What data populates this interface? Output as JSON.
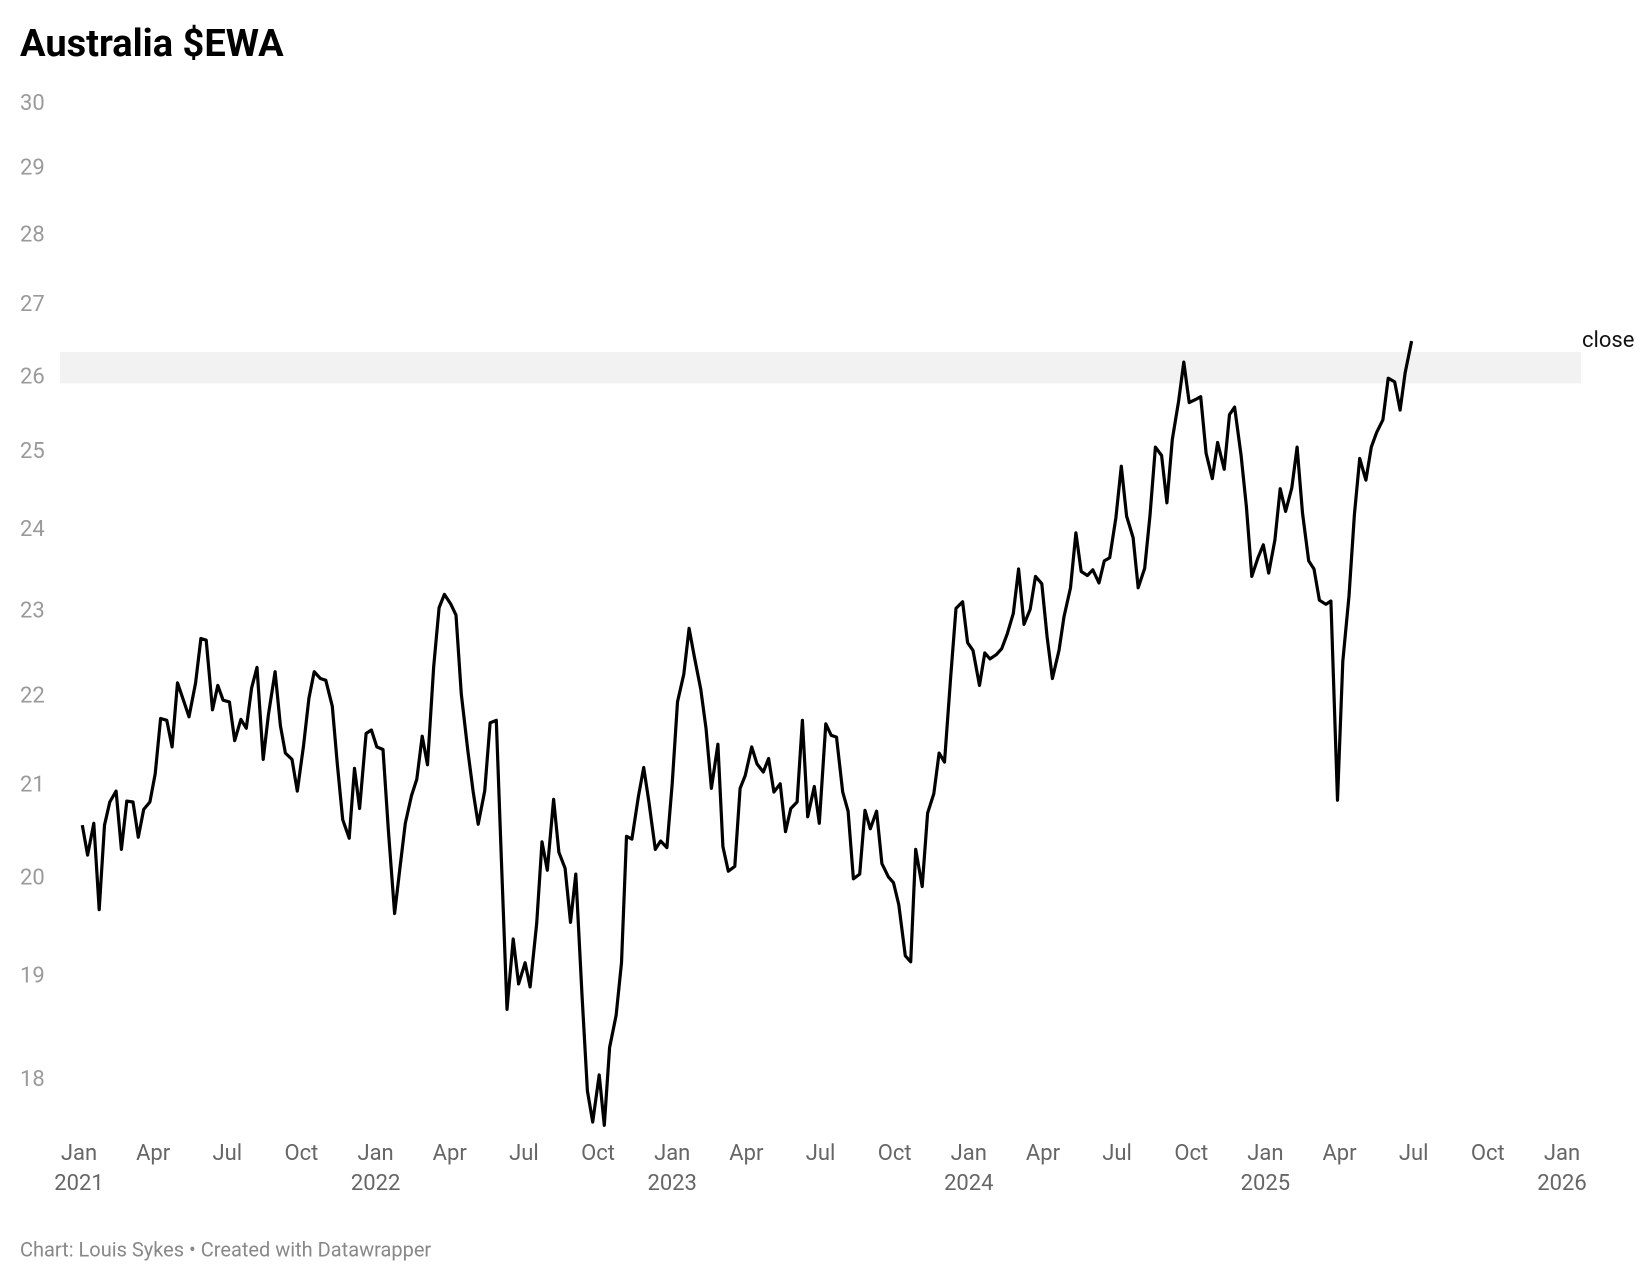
{
  "chart_data": {
    "type": "line",
    "title": "Australia $EWA",
    "source": "Chart: Louis Sykes • Created with Datawrapper",
    "log_scale": true,
    "grid": false,
    "ylim": [
      17.5,
      30
    ],
    "yticks": [
      18,
      19,
      20,
      21,
      22,
      23,
      24,
      25,
      26,
      27,
      28,
      29,
      30
    ],
    "xlim": [
      2021,
      2026
    ],
    "xticks": [
      {
        "value": 2021,
        "label": "Jan 2021"
      },
      {
        "value": 2021.25,
        "label": "Apr"
      },
      {
        "value": 2021.5,
        "label": "Jul"
      },
      {
        "value": 2021.75,
        "label": "Oct"
      },
      {
        "value": 2022,
        "label": "Jan 2022"
      },
      {
        "value": 2022.25,
        "label": "Apr"
      },
      {
        "value": 2022.5,
        "label": "Jul"
      },
      {
        "value": 2022.75,
        "label": "Oct"
      },
      {
        "value": 2023,
        "label": "Jan 2023"
      },
      {
        "value": 2023.25,
        "label": "Apr"
      },
      {
        "value": 2023.5,
        "label": "Jul"
      },
      {
        "value": 2023.75,
        "label": "Oct"
      },
      {
        "value": 2024,
        "label": "Jan 2024"
      },
      {
        "value": 2024.25,
        "label": "Apr"
      },
      {
        "value": 2024.5,
        "label": "Jul"
      },
      {
        "value": 2024.75,
        "label": "Oct"
      },
      {
        "value": 2025,
        "label": "Jan 2025"
      },
      {
        "value": 2025.25,
        "label": "Apr"
      },
      {
        "value": 2025.5,
        "label": "Jul"
      },
      {
        "value": 2025.75,
        "label": "Oct"
      },
      {
        "value": 2026,
        "label": "Jan 2026"
      }
    ],
    "highlight_range": [
      25.92,
      26.35
    ],
    "highlight_color": "#f2f2f2",
    "x": [
      2021.011,
      2021.029,
      2021.05,
      2021.068,
      2021.086,
      2021.104,
      2021.125,
      2021.143,
      2021.161,
      2021.182,
      2021.2,
      2021.218,
      2021.239,
      2021.257,
      2021.275,
      2021.296,
      2021.314,
      2021.332,
      2021.354,
      2021.371,
      2021.393,
      2021.411,
      2021.429,
      2021.45,
      2021.468,
      2021.486,
      2021.507,
      2021.525,
      2021.546,
      2021.564,
      2021.582,
      2021.6,
      2021.621,
      2021.639,
      2021.661,
      2021.679,
      2021.696,
      2021.718,
      2021.736,
      2021.757,
      2021.775,
      2021.793,
      2021.814,
      2021.832,
      2021.854,
      2021.871,
      2021.889,
      2021.911,
      2021.929,
      2021.946,
      2021.968,
      2021.986,
      2022.004,
      2022.025,
      2022.043,
      2022.064,
      2022.082,
      2022.1,
      2022.121,
      2022.139,
      2022.157,
      2022.175,
      2022.196,
      2022.214,
      2022.232,
      2022.254,
      2022.271,
      2022.289,
      2022.311,
      2022.329,
      2022.346,
      2022.368,
      2022.386,
      2022.407,
      2022.425,
      2022.443,
      2022.464,
      2022.482,
      2022.504,
      2022.521,
      2022.543,
      2022.561,
      2022.579,
      2022.6,
      2022.618,
      2022.639,
      2022.657,
      2022.675,
      2022.696,
      2022.714,
      2022.732,
      2022.754,
      2022.771,
      2022.789,
      2022.811,
      2022.829,
      2022.846,
      2022.864,
      2022.886,
      2022.904,
      2022.921,
      2022.943,
      2022.961,
      2022.982,
      2023.0,
      2023.018,
      2023.039,
      2023.057,
      2023.075,
      2023.096,
      2023.114,
      2023.132,
      2023.154,
      2023.171,
      2023.189,
      2023.211,
      2023.229,
      2023.246,
      2023.268,
      2023.286,
      2023.307,
      2023.325,
      2023.343,
      2023.364,
      2023.382,
      2023.4,
      2023.421,
      2023.439,
      2023.457,
      2023.479,
      2023.496,
      2023.518,
      2023.536,
      2023.554,
      2023.575,
      2023.593,
      2023.611,
      2023.632,
      2023.65,
      2023.668,
      2023.689,
      2023.707,
      2023.729,
      2023.746,
      2023.764,
      2023.786,
      2023.804,
      2023.821,
      2023.843,
      2023.861,
      2023.882,
      2023.9,
      2023.918,
      2023.939,
      2023.957,
      2023.979,
      2023.996,
      2024.014,
      2024.036,
      2024.054,
      2024.071,
      2024.093,
      2024.111,
      2024.129,
      2024.15,
      2024.168,
      2024.186,
      2024.207,
      2024.225,
      2024.246,
      2024.264,
      2024.282,
      2024.304,
      2024.321,
      2024.343,
      2024.361,
      2024.379,
      2024.4,
      2024.418,
      2024.439,
      2024.457,
      2024.475,
      2024.496,
      2024.514,
      2024.532,
      2024.554,
      2024.571,
      2024.593,
      2024.611,
      2024.629,
      2024.65,
      2024.668,
      2024.686,
      2024.707,
      2024.725,
      2024.743,
      2024.764,
      2024.782,
      2024.8,
      2024.821,
      2024.839,
      2024.861,
      2024.879,
      2024.896,
      2024.918,
      2024.936,
      2024.954,
      2024.975,
      2024.993,
      2025.011,
      2025.032,
      2025.05,
      2025.068,
      2025.089,
      2025.107,
      2025.125,
      2025.146,
      2025.164,
      2025.182,
      2025.204,
      2025.221,
      2025.243,
      2025.261,
      2025.282,
      2025.3,
      2025.318,
      2025.339,
      2025.357,
      2025.375,
      2025.396,
      2025.414,
      2025.436,
      2025.454,
      2025.471,
      2025.493
    ],
    "series": [
      {
        "name": "close",
        "color": "#000000",
        "values": [
          20.57,
          20.25,
          20.59,
          19.68,
          20.57,
          20.82,
          20.94,
          20.31,
          20.83,
          20.82,
          20.44,
          20.74,
          20.82,
          21.13,
          21.75,
          21.73,
          21.43,
          22.16,
          21.94,
          21.77,
          22.16,
          22.68,
          22.66,
          21.85,
          22.13,
          21.96,
          21.94,
          21.5,
          21.74,
          21.64,
          22.1,
          22.34,
          21.29,
          21.8,
          22.29,
          21.67,
          21.36,
          21.29,
          20.94,
          21.44,
          21.98,
          22.29,
          22.21,
          22.19,
          21.89,
          21.24,
          20.63,
          20.43,
          21.19,
          20.75,
          21.58,
          21.62,
          21.43,
          21.4,
          20.51,
          19.64,
          20.11,
          20.59,
          20.89,
          21.07,
          21.55,
          21.23,
          22.35,
          23.05,
          23.21,
          23.09,
          22.96,
          22.03,
          21.39,
          20.93,
          20.58,
          20.94,
          21.7,
          21.73,
          20.11,
          18.68,
          19.38,
          18.93,
          19.14,
          18.9,
          19.54,
          20.39,
          20.09,
          20.85,
          20.28,
          20.11,
          19.55,
          20.05,
          18.82,
          17.9,
          17.61,
          18.05,
          17.58,
          18.31,
          18.62,
          19.14,
          20.45,
          20.42,
          20.88,
          21.2,
          20.83,
          20.31,
          20.4,
          20.33,
          21.02,
          21.94,
          22.26,
          22.8,
          22.46,
          22.09,
          21.64,
          20.97,
          21.46,
          20.34,
          20.08,
          20.13,
          20.97,
          21.11,
          21.43,
          21.24,
          21.15,
          21.3,
          20.93,
          21.02,
          20.5,
          20.75,
          20.82,
          21.73,
          20.66,
          20.99,
          20.59,
          21.69,
          21.56,
          21.54,
          20.93,
          20.72,
          20.0,
          20.05,
          20.73,
          20.53,
          20.72,
          20.16,
          20.02,
          19.96,
          19.73,
          19.21,
          19.15,
          20.31,
          19.92,
          20.7,
          20.91,
          21.36,
          21.26,
          22.23,
          23.04,
          23.12,
          22.63,
          22.54,
          22.13,
          22.51,
          22.44,
          22.49,
          22.56,
          22.73,
          22.98,
          23.52,
          22.85,
          23.03,
          23.43,
          23.34,
          22.7,
          22.21,
          22.54,
          22.94,
          23.29,
          23.97,
          23.49,
          23.44,
          23.51,
          23.35,
          23.62,
          23.66,
          24.16,
          24.82,
          24.18,
          23.91,
          23.29,
          23.53,
          24.19,
          25.07,
          24.96,
          24.35,
          25.17,
          25.67,
          26.21,
          25.66,
          25.7,
          25.74,
          24.99,
          24.66,
          25.13,
          24.78,
          25.5,
          25.6,
          24.96,
          24.3,
          23.43,
          23.66,
          23.82,
          23.47,
          23.88,
          24.53,
          24.24,
          24.54,
          25.07,
          24.22,
          23.62,
          23.52,
          23.14,
          23.09,
          23.13,
          20.84,
          22.41,
          23.19,
          24.2,
          24.92,
          24.64,
          25.07,
          25.26,
          25.43,
          25.99,
          25.94,
          25.56,
          26.06,
          26.5
        ]
      }
    ]
  }
}
